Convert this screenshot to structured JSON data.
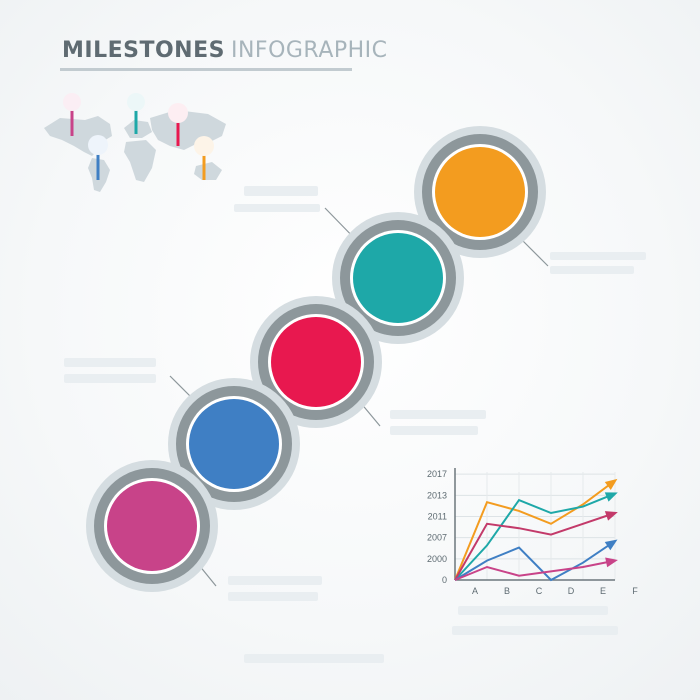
{
  "title": {
    "part1": "MILESTONES",
    "part2": "INFOGRAPHIC"
  },
  "colors": {
    "magenta": "#c84389",
    "blue": "#3f7fc4",
    "red": "#e8184f",
    "teal": "#1ea8a8",
    "orange": "#f39c1f",
    "ring": "#8d979b",
    "ring_light": "#d5dde1"
  },
  "chart_data": {
    "type": "line",
    "categories": [
      "A",
      "B",
      "C",
      "D",
      "E",
      "F"
    ],
    "y_ticks": [
      "0",
      "2000",
      "2007",
      "2011",
      "2013",
      "2017"
    ],
    "series": [
      {
        "color": "#f39c1f",
        "values": [
          0,
          3.6,
          3.2,
          2.6,
          3.5,
          4.6
        ]
      },
      {
        "color": "#1ea8a8",
        "values": [
          0,
          1.6,
          3.7,
          3.1,
          3.4,
          4.0
        ]
      },
      {
        "color": "#c33a6a",
        "values": [
          0,
          2.6,
          2.4,
          2.1,
          2.6,
          3.1
        ]
      },
      {
        "color": "#3f7fc4",
        "values": [
          0,
          0.9,
          1.5,
          0.0,
          0.8,
          1.8
        ]
      },
      {
        "color": "#c84389",
        "values": [
          0,
          0.6,
          0.2,
          0.4,
          0.6,
          0.9
        ]
      }
    ]
  }
}
